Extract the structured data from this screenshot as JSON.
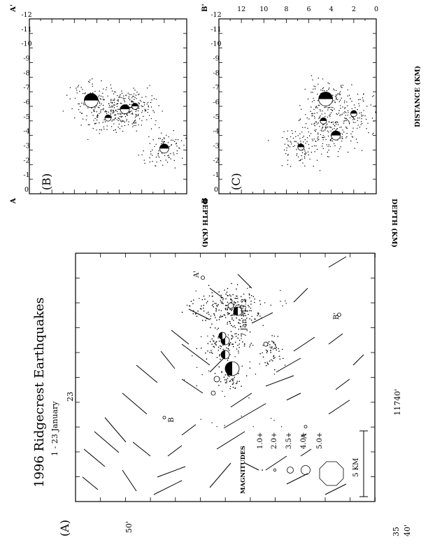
{
  "chart_data": [
    {
      "type": "map",
      "panel": "(A)",
      "title": "1996 Ridgecrest Earthquakes",
      "subtitle": "1 - 23 January",
      "tick_labels": [
        "35",
        "40'",
        "50'",
        "23",
        "11740'"
      ],
      "annotations": {
        "event": "7 Jan M5.2",
        "A": "A",
        "A_prime": "A'",
        "B": "B",
        "B_prime": "B'"
      },
      "legend": {
        "title": "MAGNITUDES",
        "entries": [
          "1.0+",
          "2.0+",
          "3.5+",
          "4.0+",
          "5.0+"
        ]
      },
      "scale_bar": "5 KM"
    },
    {
      "type": "scatter",
      "panel": "(B)",
      "end_labels": [
        "A",
        "A'"
      ],
      "ylabel": "DEPTH (KM)",
      "y_ticks": [
        "0",
        "-1",
        "-2",
        "-3",
        "-4",
        "-5",
        "-6",
        "-7",
        "-8",
        "-9",
        "-10",
        "-11",
        "-12"
      ],
      "ylim": [
        -12,
        0
      ],
      "xlim": [
        0,
        14
      ],
      "large_events": [
        {
          "x": 8.5,
          "depth": -6.4,
          "mag": "5.0+"
        },
        {
          "x": 2.0,
          "depth": -3.1,
          "mag": "4.0+"
        },
        {
          "x": 5.5,
          "depth": -5.8,
          "mag": "4.0+"
        },
        {
          "x": 4.6,
          "depth": -6.0,
          "mag": "3.5+"
        },
        {
          "x": 7.0,
          "depth": -5.2,
          "mag": "3.5+"
        }
      ]
    },
    {
      "type": "scatter",
      "panel": "(C)",
      "end_labels": [
        "B",
        "B'"
      ],
      "ylabel": "DEPTH (KM)",
      "xlabel": "DISTANCE (KM)",
      "x_ticks": [
        "0",
        "2",
        "4",
        "6",
        "8",
        "10",
        "12"
      ],
      "y_ticks": [
        "0",
        "-1",
        "-2",
        "-3",
        "-4",
        "-5",
        "-6",
        "-7",
        "-8",
        "-9",
        "-10",
        "-11",
        "-12"
      ],
      "ylim": [
        -12,
        0
      ],
      "xlim": [
        0,
        14
      ],
      "large_events": [
        {
          "x": 4.5,
          "depth": -6.5,
          "mag": "5.0+"
        },
        {
          "x": 3.6,
          "depth": -4.0,
          "mag": "4.0+"
        },
        {
          "x": 6.7,
          "depth": -3.2,
          "mag": "3.5+"
        },
        {
          "x": 2.0,
          "depth": -5.5,
          "mag": "3.5+"
        },
        {
          "x": 4.7,
          "depth": -5.0,
          "mag": "3.5+"
        }
      ]
    }
  ]
}
